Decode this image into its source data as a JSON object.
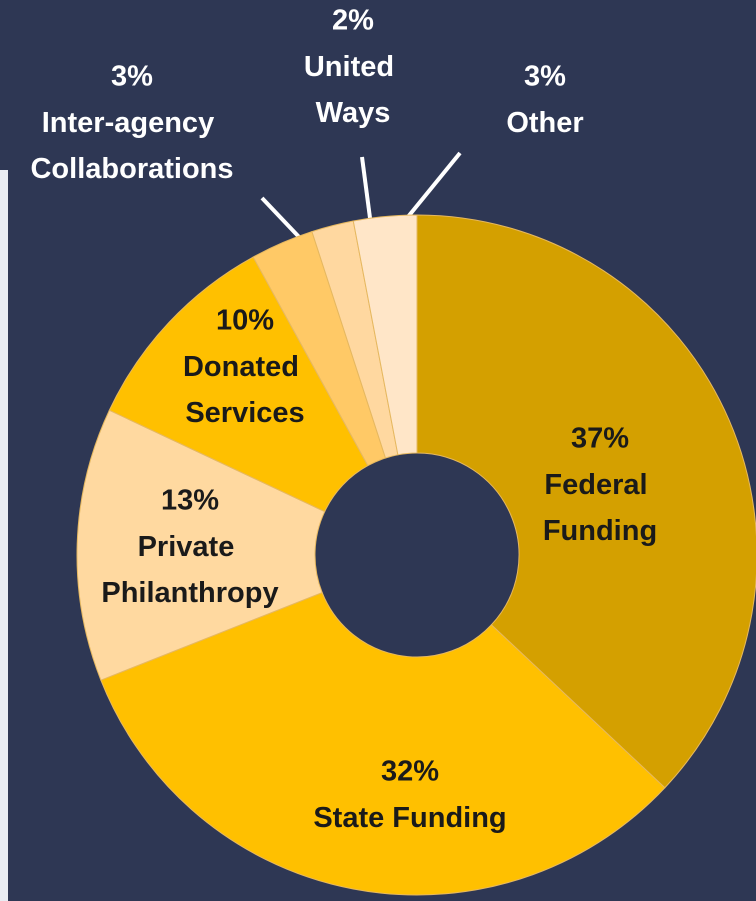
{
  "chart_data": {
    "type": "donut",
    "categories": [
      "Federal Funding",
      "State Funding",
      "Private Philanthropy",
      "Donated Services",
      "Inter-agency Collaborations",
      "United Ways",
      "Other"
    ],
    "values": [
      37,
      32,
      13,
      10,
      3,
      2,
      3
    ],
    "value_labels": [
      "37%",
      "32%",
      "13%",
      "10%",
      "3%",
      "2%",
      "3%"
    ],
    "colors": [
      "#d4a000",
      "#ffc000",
      "#ffd9a0",
      "#ffc000",
      "#ffc966",
      "#ffd8a0",
      "#ffe6c8"
    ]
  }
}
